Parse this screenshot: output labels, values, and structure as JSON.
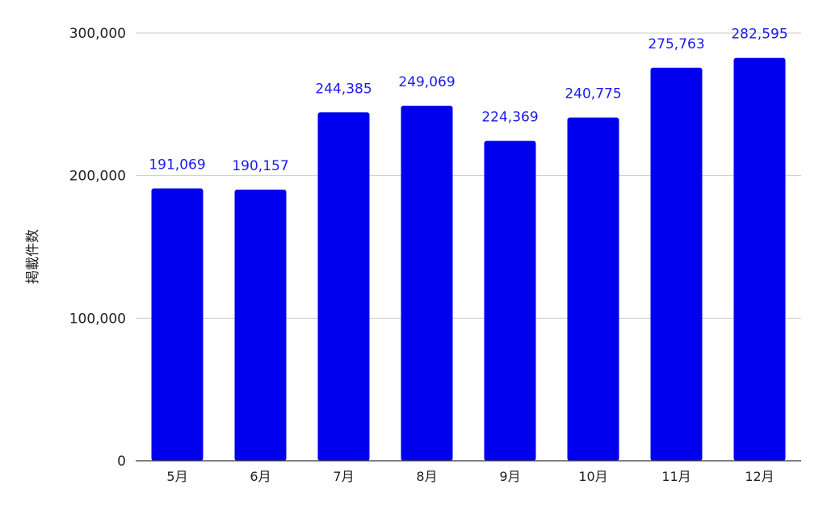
{
  "chart_data": {
    "type": "bar",
    "title": "",
    "xlabel": "",
    "ylabel": "掲載件数",
    "categories": [
      "5月",
      "6月",
      "7月",
      "8月",
      "9月",
      "10月",
      "11月",
      "12月"
    ],
    "values": [
      191069,
      190157,
      244385,
      249069,
      224369,
      240775,
      275763,
      282595
    ],
    "value_labels": [
      "191,069",
      "190,157",
      "244,385",
      "249,069",
      "224,369",
      "240,775",
      "275,763",
      "282,595"
    ],
    "ylim": [
      0,
      300000
    ],
    "yticks": [
      0,
      100000,
      200000,
      300000
    ],
    "ytick_labels": [
      "0",
      "100,000",
      "200,000",
      "300,000"
    ],
    "grid": true,
    "legend": "none",
    "bar_color": "#0000ee",
    "label_color": "#1a1aee"
  }
}
